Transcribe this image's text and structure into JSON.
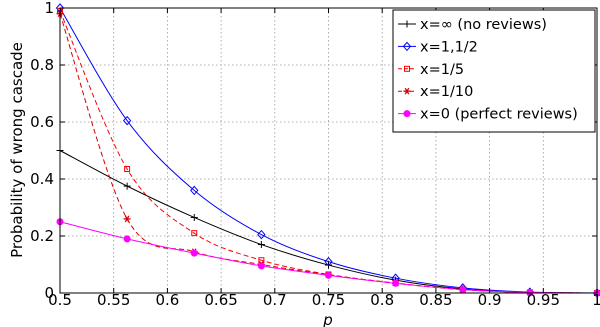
{
  "chart_data": {
    "type": "line",
    "title": "",
    "xlabel": "p",
    "ylabel": "Probability of wrong cascade",
    "xlim": [
      0.5,
      1
    ],
    "ylim": [
      0,
      1
    ],
    "grid": true,
    "legend_position": "top-right",
    "x_ticks": [
      0.5,
      0.55,
      0.6,
      0.65,
      0.7,
      0.75,
      0.8,
      0.85,
      0.9,
      0.95,
      1
    ],
    "x_tick_labels": [
      "0.5",
      "0.55",
      "0.6",
      "0.65",
      "0.7",
      "0.75",
      "0.8",
      "0.85",
      "0.9",
      "0.95",
      "1"
    ],
    "y_ticks": [
      0,
      0.2,
      0.4,
      0.6,
      0.8,
      1
    ],
    "y_tick_labels": [
      "0",
      "0.2",
      "0.4",
      "0.6",
      "0.8",
      "1"
    ],
    "series": [
      {
        "name": "x=∞ (no reviews)",
        "color": "#000000",
        "line_style": "solid",
        "marker": "plus",
        "x": [
          0.5,
          0.5625,
          0.625,
          0.6875,
          0.75,
          0.8125,
          0.875,
          0.9375,
          1.0
        ],
        "y": [
          0.5,
          0.375,
          0.265,
          0.17,
          0.098,
          0.045,
          0.014,
          0.002,
          0.0
        ]
      },
      {
        "name": "x=1,1/2",
        "color": "#0000ff",
        "line_style": "solid",
        "marker": "diamond",
        "x": [
          0.5,
          0.5625,
          0.625,
          0.6875,
          0.75,
          0.8125,
          0.875,
          0.9375,
          1.0
        ],
        "y": [
          1.0,
          0.605,
          0.36,
          0.205,
          0.11,
          0.052,
          0.018,
          0.003,
          0.0
        ]
      },
      {
        "name": "x=1/5",
        "color": "#ff0000",
        "line_style": "dashed",
        "marker": "square",
        "x": [
          0.5,
          0.5625,
          0.625,
          0.6875,
          0.75,
          0.8125,
          0.875,
          0.9375,
          1.0
        ],
        "y": [
          0.99,
          0.435,
          0.21,
          0.115,
          0.065,
          0.035,
          0.012,
          0.002,
          0.0
        ]
      },
      {
        "name": "x=1/10",
        "color": "#d40000",
        "line_style": "dashed",
        "marker": "star",
        "x": [
          0.5,
          0.5625,
          0.625,
          0.6875,
          0.75,
          0.8125,
          0.875,
          0.9375,
          1.0
        ],
        "y": [
          0.98,
          0.26,
          0.145,
          0.1,
          0.064,
          0.034,
          0.012,
          0.002,
          0.0
        ]
      },
      {
        "name": "x=0 (perfect reviews)",
        "color": "#ff00ff",
        "line_style": "solid",
        "marker": "circle",
        "x": [
          0.5,
          0.5625,
          0.625,
          0.6875,
          0.75,
          0.8125,
          0.875,
          0.9375,
          1.0
        ],
        "y": [
          0.25,
          0.19,
          0.14,
          0.095,
          0.062,
          0.034,
          0.012,
          0.002,
          0.0
        ]
      }
    ]
  }
}
